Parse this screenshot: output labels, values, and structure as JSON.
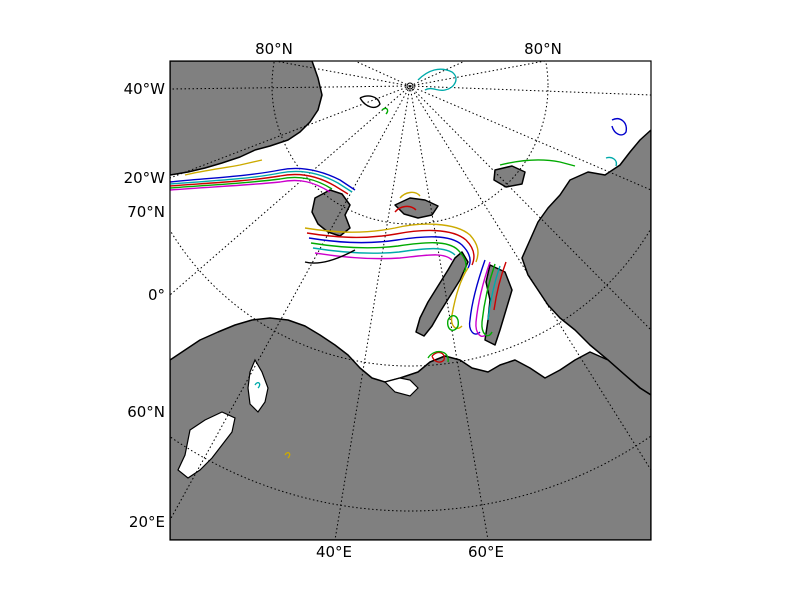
{
  "map": {
    "labels": {
      "top_left_lat": "80°N",
      "top_right_lat": "80°N",
      "lon_40w": "40°W",
      "lon_20w": "20°W",
      "lat_70n": "70°N",
      "lon_0": "0°",
      "lat_60n": "60°N",
      "lon_20e": "20°E",
      "lon_40e": "40°E",
      "lon_60e": "60°E"
    },
    "colors": {
      "land": "#808080",
      "ocean": "#ffffff",
      "coast": "#000000",
      "grid": "#000000"
    },
    "contour_colors": [
      "#0000cc",
      "#00aa00",
      "#cc0000",
      "#00aaaa",
      "#cc00cc",
      "#ccaa00",
      "#000000"
    ]
  }
}
